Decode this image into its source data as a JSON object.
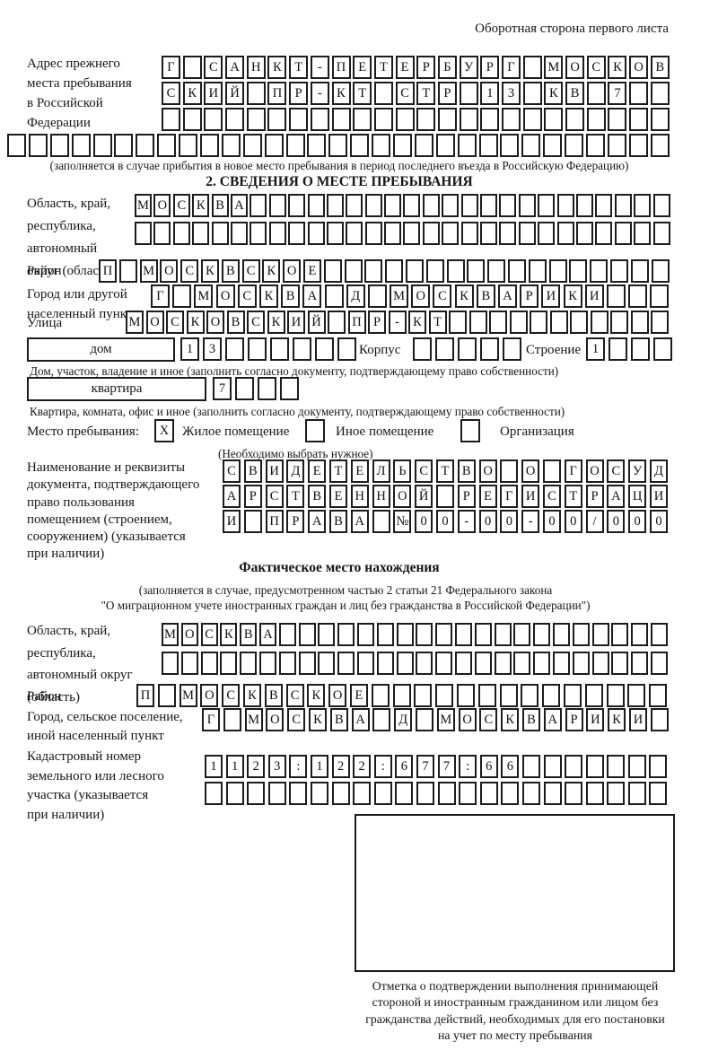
{
  "header_note": "Оборотная сторона первого листа",
  "prev_address": {
    "label_lines": [
      "Адрес прежнего",
      "места пребывания",
      "в Российской",
      "Федерации"
    ],
    "row1": {
      "text": "Г САНКТ-ПЕТЕРБУРГ МОСКОВ",
      "total": 24
    },
    "row2": {
      "text": "СКИЙ ПР-КТ СТР 13 КВ 7",
      "total": 24
    },
    "row3": {
      "text": "",
      "total": 24
    },
    "row4": {
      "text": "",
      "total": 31
    },
    "footnote": "(заполняется в случае прибытия в новое место пребывания в период последнего въезда в Российскую Федерацию)"
  },
  "section2": {
    "title": "2. СВЕДЕНИЯ О МЕСТЕ ПРЕБЫВАНИЯ",
    "oblast": {
      "label_lines": [
        "Область, край,",
        "республика,",
        "автономный",
        "округ (область)"
      ],
      "row1": {
        "text": "МОСКВА",
        "total": 28
      },
      "row2": {
        "text": "",
        "total": 28
      }
    },
    "raion": {
      "label": "Район",
      "row": {
        "text": "П МОСКВСКОЕ",
        "total": 28
      }
    },
    "gorod": {
      "label_lines": [
        "Город или другой",
        "населенный пункт"
      ],
      "row": {
        "text": "Г МОСКВА Д МОСКВАРИКИ",
        "total": 24
      }
    },
    "ulitsa": {
      "label": "Улица",
      "row": {
        "text": "МОСКОВСКИЙ ПР-КТ",
        "total": 27
      }
    },
    "dom": {
      "box_label": "дом",
      "cells": {
        "text": "13",
        "total": 8
      },
      "korpus_label": "Корпус",
      "korpus_cells": {
        "text": "",
        "total": 5
      },
      "stroenie_label": "Строение",
      "stroenie_cells": {
        "text": "1",
        "total": 4
      },
      "caption": "Дом, участок, владение и иное (заполнить согласно документу, подтверждающему право собственности)"
    },
    "kvartira": {
      "box_label": "квартира",
      "cells": {
        "text": "7",
        "total": 4
      },
      "caption": "Квартира, комната, офис и иное (заполнить согласно документу, подтверждающему право собственности)"
    },
    "stay": {
      "label": "Место пребывания:",
      "options": [
        {
          "label": "Жилое помещение",
          "mark": "X"
        },
        {
          "label": "Иное помещение",
          "mark": ""
        },
        {
          "label": "Организация",
          "mark": ""
        }
      ],
      "note": "(Необходимо выбрать нужное)"
    },
    "doc": {
      "label_lines": [
        "Наименование и реквизиты",
        "документа, подтверждающего",
        "право пользования",
        "помещением (строением,",
        "сооружением) (указывается",
        "при наличии)"
      ],
      "row1": {
        "text": "СВИДЕТЕЛЬСТВО О ГОСУД",
        "total": 21
      },
      "row2": {
        "text": "АРСТВЕННОЙ РЕГИСТРАЦИ",
        "total": 21
      },
      "row3": {
        "text": "И ПРАВА №00-00-00/000",
        "total": 21
      }
    }
  },
  "actual": {
    "title": "Фактическое место нахождения",
    "caption_lines": [
      "(заполняется в случае, предусмотренном частью 2 статьи 21 Федерального закона",
      "\"О миграционном учете иностранных граждан и лиц без гражданства в Российской Федерации\")"
    ],
    "oblast": {
      "label_lines": [
        "Область, край,",
        "республика,",
        "автономный округ",
        "(область)"
      ],
      "row1": {
        "text": "МОСКВА",
        "total": 26
      },
      "row2": {
        "text": "",
        "total": 26
      }
    },
    "raion": {
      "label": "Район",
      "row": {
        "text": "П МОСКВСКОЕ",
        "total": 25
      }
    },
    "gorod": {
      "label_lines": [
        "Город, сельское поселение,",
        "иной населенный пункт"
      ],
      "row": {
        "text": "Г МОСКВА Д МОСКВАРИКИ",
        "total": 22
      }
    },
    "cadastre": {
      "label_lines": [
        "Кадастровый номер",
        "земельного или лесного",
        "участка (указывается",
        "при наличии)"
      ],
      "row1": {
        "text": "1123:122:677:66",
        "total": 22
      },
      "row2": {
        "text": "",
        "total": 22
      }
    },
    "stamp_caption_lines": [
      "Отметка о подтверждении выполнения принимающей",
      "стороной и иностранным гражданином или лицом без",
      "гражданства действий, необходимых для его постановки",
      "на учет по месту пребывания"
    ]
  }
}
